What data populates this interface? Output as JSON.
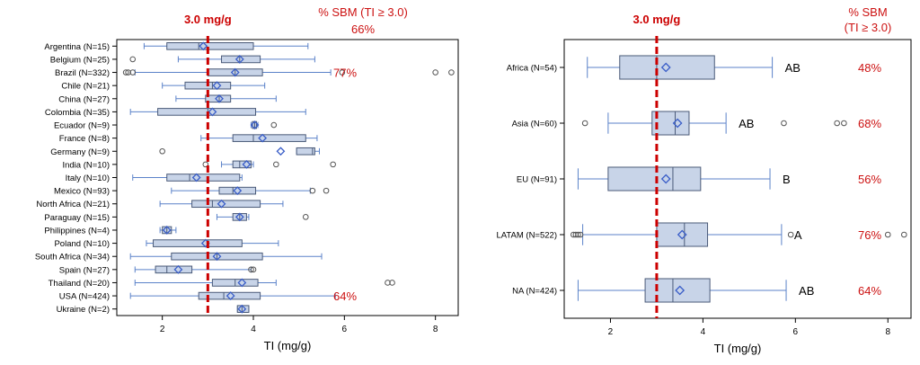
{
  "colors": {
    "box_fill": "#c8d4e8",
    "box_stroke": "#4a5a78",
    "whisker": "#5b82c9",
    "mean_marker": "#3a5ec8",
    "outlier": "#555555",
    "reference_line": "#cc0000",
    "annotation": "#cc1111",
    "axis": "#000000"
  },
  "chart_data": [
    {
      "type": "box",
      "orientation": "horizontal",
      "xlabel": "TI (mg/g)",
      "xlim": [
        1.0,
        8.5
      ],
      "xticks": [
        "2",
        "4",
        "6",
        "8"
      ],
      "xtick_values": [
        2,
        4,
        6,
        8
      ],
      "reference": {
        "value": 3.0,
        "label": "3.0 mg/g"
      },
      "header": {
        "line1": "% SBM (TI ≥ 3.0)",
        "line2": "66%"
      },
      "categories": [
        {
          "label": "Argentina (N=15)",
          "min": 1.6,
          "q1": 2.1,
          "median": 2.8,
          "q3": 4.0,
          "max": 5.2,
          "mean": 2.9,
          "outliers": []
        },
        {
          "label": "Belgium (N=25)",
          "min": 2.35,
          "q1": 3.3,
          "median": 3.7,
          "q3": 4.15,
          "max": 5.35,
          "mean": 3.7,
          "outliers": [
            1.35
          ]
        },
        {
          "label": "Brazil (N=332)",
          "min": 1.4,
          "q1": 3.0,
          "median": 3.6,
          "q3": 4.2,
          "max": 5.7,
          "mean": 3.6,
          "outliers": [
            1.2,
            1.25,
            1.35,
            5.95,
            8.0,
            8.35
          ]
        },
        {
          "label": "Chile (N=21)",
          "min": 2.0,
          "q1": 2.5,
          "median": 3.1,
          "q3": 3.5,
          "max": 4.25,
          "mean": 3.2,
          "outliers": []
        },
        {
          "label": "China (N=27)",
          "min": 2.3,
          "q1": 2.95,
          "median": 3.25,
          "q3": 3.5,
          "max": 4.5,
          "mean": 3.25,
          "outliers": []
        },
        {
          "label": "Colombia (N=35)",
          "min": 1.3,
          "q1": 1.9,
          "median": 3.0,
          "q3": 4.05,
          "max": 5.15,
          "mean": 3.1,
          "outliers": []
        },
        {
          "label": "Ecuador (N=9)",
          "min": 3.95,
          "q1": 3.98,
          "median": 4.03,
          "q3": 4.07,
          "max": 4.1,
          "mean": 4.03,
          "outliers": [
            4.45
          ]
        },
        {
          "label": "France (N=8)",
          "min": 2.85,
          "q1": 3.55,
          "median": 4.0,
          "q3": 5.15,
          "max": 5.4,
          "mean": 4.2,
          "outliers": []
        },
        {
          "label": "Germany (N=9)",
          "min": 4.95,
          "q1": 4.95,
          "median": 5.3,
          "q3": 5.35,
          "max": 5.45,
          "mean": 4.6,
          "outliers": [
            2.0
          ]
        },
        {
          "label": "India (N=10)",
          "min": 3.3,
          "q1": 3.55,
          "median": 3.7,
          "q3": 3.95,
          "max": 4.0,
          "mean": 3.85,
          "outliers": [
            2.95,
            4.5,
            5.75
          ]
        },
        {
          "label": "Italy (N=10)",
          "min": 1.35,
          "q1": 2.1,
          "median": 2.6,
          "q3": 3.7,
          "max": 3.75,
          "mean": 2.75,
          "outliers": []
        },
        {
          "label": "Mexico (N=93)",
          "min": 2.2,
          "q1": 3.25,
          "median": 3.55,
          "q3": 4.05,
          "max": 5.25,
          "mean": 3.65,
          "outliers": [
            5.3,
            5.6
          ]
        },
        {
          "label": "North Africa (N=21)",
          "min": 1.95,
          "q1": 2.65,
          "median": 3.1,
          "q3": 4.15,
          "max": 4.65,
          "mean": 3.3,
          "outliers": []
        },
        {
          "label": "Paraguay (N=15)",
          "min": 3.2,
          "q1": 3.55,
          "median": 3.7,
          "q3": 3.85,
          "max": 3.9,
          "mean": 3.7,
          "outliers": [
            5.15
          ]
        },
        {
          "label": "Philippines (N=4)",
          "min": 1.95,
          "q1": 2.0,
          "median": 2.1,
          "q3": 2.2,
          "max": 2.3,
          "mean": 2.1,
          "outliers": []
        },
        {
          "label": "Poland (N=10)",
          "min": 1.65,
          "q1": 1.8,
          "median": 3.0,
          "q3": 3.75,
          "max": 4.55,
          "mean": 2.95,
          "outliers": []
        },
        {
          "label": "South Africa (N=34)",
          "min": 1.3,
          "q1": 2.2,
          "median": 3.2,
          "q3": 4.2,
          "max": 5.5,
          "mean": 3.2,
          "outliers": []
        },
        {
          "label": "Spain (N=27)",
          "min": 1.4,
          "q1": 1.85,
          "median": 2.1,
          "q3": 2.65,
          "max": 3.95,
          "mean": 2.35,
          "outliers": [
            3.95,
            4.0
          ]
        },
        {
          "label": "Thailand (N=20)",
          "min": 1.4,
          "q1": 3.1,
          "median": 3.6,
          "q3": 4.1,
          "max": 4.5,
          "mean": 3.75,
          "outliers": [
            6.95,
            7.05
          ]
        },
        {
          "label": "USA (N=424)",
          "min": 1.3,
          "q1": 2.8,
          "median": 3.35,
          "q3": 4.15,
          "max": 5.8,
          "mean": 3.5,
          "outliers": []
        },
        {
          "label": "Ukraine (N=2)",
          "min": 3.65,
          "q1": 3.65,
          "median": 3.75,
          "q3": 3.9,
          "max": 3.9,
          "mean": 3.75,
          "outliers": []
        }
      ],
      "annotations": [
        {
          "category": "Brazil (N=332)",
          "text": "77%"
        },
        {
          "category": "USA (N=424)",
          "text": "64%"
        }
      ]
    },
    {
      "type": "box",
      "orientation": "horizontal",
      "xlabel": "TI (mg/g)",
      "xlim": [
        1.0,
        8.5
      ],
      "xticks": [
        "2",
        "4",
        "6",
        "8"
      ],
      "xtick_values": [
        2,
        4,
        6,
        8
      ],
      "reference": {
        "value": 3.0,
        "label": "3.0 mg/g"
      },
      "header": {
        "line1": "% SBM",
        "line2": "(TI ≥ 3.0)"
      },
      "categories": [
        {
          "label": "Africa (N=54)",
          "min": 1.5,
          "q1": 2.2,
          "median": 3.0,
          "q3": 4.25,
          "max": 5.5,
          "mean": 3.2,
          "outliers": [],
          "letter": "AB",
          "pct": "48%"
        },
        {
          "label": "Asia (N=60)",
          "min": 1.95,
          "q1": 2.9,
          "median": 3.4,
          "q3": 3.7,
          "max": 4.5,
          "mean": 3.45,
          "outliers": [
            1.45,
            5.75,
            6.9,
            7.05
          ],
          "letter": "AB",
          "pct": "68%"
        },
        {
          "label": "EU (N=91)",
          "min": 1.3,
          "q1": 1.95,
          "median": 3.35,
          "q3": 3.95,
          "max": 5.45,
          "mean": 3.2,
          "outliers": [],
          "letter": "B",
          "pct": "56%"
        },
        {
          "label": "LATAM (N=522)",
          "min": 1.4,
          "q1": 3.0,
          "median": 3.6,
          "q3": 4.1,
          "max": 5.7,
          "mean": 3.55,
          "outliers": [
            1.2,
            1.25,
            1.3,
            1.35,
            5.9,
            8.0,
            8.35
          ],
          "letter": "A",
          "pct": "76%"
        },
        {
          "label": "NA (N=424)",
          "min": 1.3,
          "q1": 2.75,
          "median": 3.35,
          "q3": 4.15,
          "max": 5.8,
          "mean": 3.5,
          "outliers": [],
          "letter": "AB",
          "pct": "64%"
        }
      ]
    }
  ]
}
